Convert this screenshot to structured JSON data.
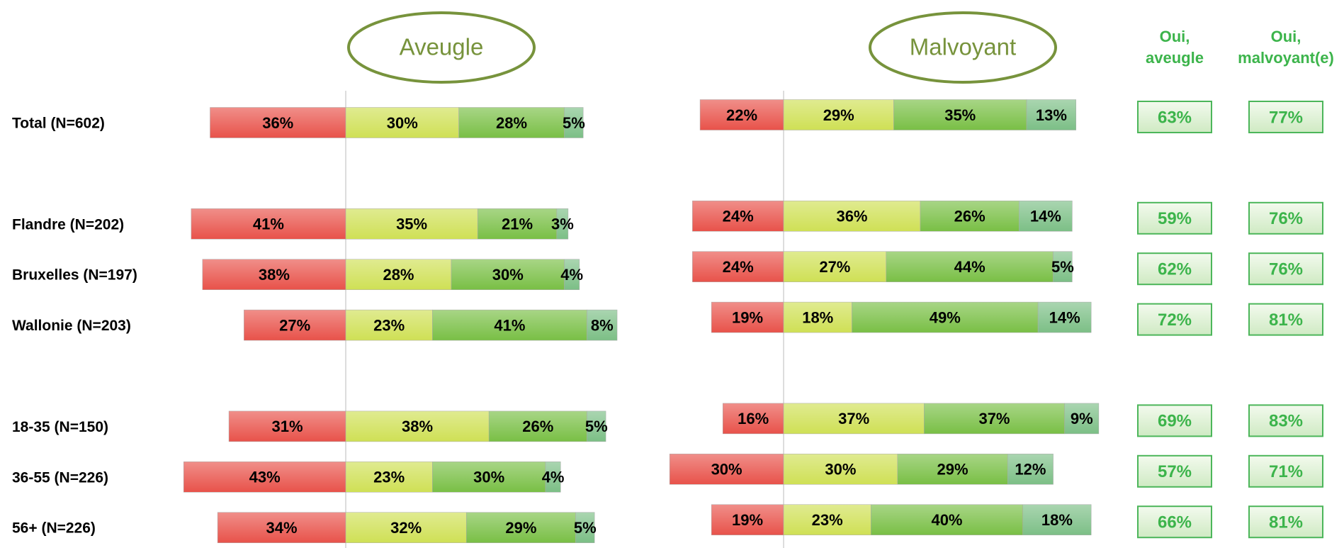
{
  "chart_data": [
    {
      "type": "bar",
      "orientation": "horizontal",
      "stacked": true,
      "title": "Aveugle",
      "categories": [
        "Total (N=602)",
        null,
        "Flandre (N=202)",
        "Bruxelles (N=197)",
        "Wallonie (N=203)",
        null,
        "18-35 (N=150)",
        "36-55 (N=226)",
        "56+ (N=226)"
      ],
      "xlim": [
        -45,
        75
      ],
      "series": [
        {
          "color": "#e8524a",
          "values": [
            -36,
            null,
            -41,
            -38,
            -27,
            null,
            -31,
            -43,
            -34
          ],
          "value_labels": [
            "36%",
            null,
            "41%",
            "38%",
            "27%",
            null,
            "31%",
            "43%",
            "34%"
          ]
        },
        {
          "color": "#cfe055",
          "values": [
            30,
            null,
            35,
            28,
            23,
            null,
            38,
            23,
            32
          ],
          "value_labels": [
            "30%",
            null,
            "35%",
            "28%",
            "23%",
            null,
            "38%",
            "23%",
            "32%"
          ]
        },
        {
          "color": "#79bf45",
          "values": [
            28,
            null,
            21,
            30,
            41,
            null,
            26,
            30,
            29
          ],
          "value_labels": [
            "28%",
            null,
            "21%",
            "30%",
            "41%",
            null,
            "26%",
            "30%",
            "29%"
          ]
        },
        {
          "color": "#7cbf86",
          "values": [
            5,
            null,
            3,
            4,
            8,
            null,
            5,
            4,
            5
          ],
          "value_labels": [
            "5%",
            null,
            "3%",
            "4%",
            "8%",
            null,
            "5%",
            "4%",
            "5%"
          ]
        }
      ]
    },
    {
      "type": "bar",
      "orientation": "horizontal",
      "stacked": true,
      "title": "Malvoyant",
      "xlim": [
        -30,
        85
      ],
      "series": [
        {
          "color": "#e8524a",
          "values": [
            -22,
            null,
            -24,
            -24,
            -19,
            null,
            -16,
            -30,
            -19
          ],
          "value_labels": [
            "22%",
            null,
            "24%",
            "24%",
            "19%",
            null,
            "16%",
            "30%",
            "19%"
          ]
        },
        {
          "color": "#cfe055",
          "values": [
            29,
            null,
            36,
            27,
            18,
            null,
            37,
            30,
            23
          ],
          "value_labels": [
            "29%",
            null,
            "36%",
            "27%",
            "18%",
            null,
            "37%",
            "30%",
            "23%"
          ]
        },
        {
          "color": "#79bf45",
          "values": [
            35,
            null,
            26,
            44,
            49,
            null,
            37,
            29,
            40
          ],
          "value_labels": [
            "35%",
            null,
            "26%",
            "44%",
            "49%",
            null,
            "37%",
            "29%",
            "40%"
          ]
        },
        {
          "color": "#7cbf86",
          "values": [
            13,
            null,
            14,
            5,
            14,
            null,
            9,
            12,
            18
          ],
          "value_labels": [
            "13%",
            null,
            "14%",
            "5%",
            "14%",
            null,
            "9%",
            "12%",
            "18%"
          ]
        }
      ]
    }
  ],
  "summary": [
    {
      "header": [
        "Oui,",
        "aveugle"
      ],
      "values": [
        "63%",
        null,
        "59%",
        "62%",
        "72%",
        null,
        "69%",
        "57%",
        "66%"
      ]
    },
    {
      "header": [
        "Oui,",
        "malvoyant(e)"
      ],
      "values": [
        "77%",
        null,
        "76%",
        "76%",
        "81%",
        null,
        "83%",
        "71%",
        "81%"
      ]
    }
  ]
}
